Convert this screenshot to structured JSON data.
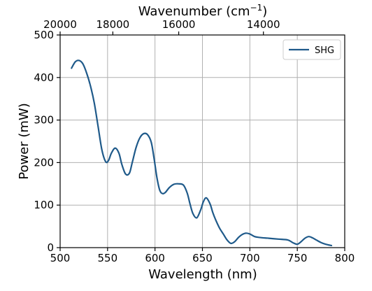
{
  "chart_data": {
    "type": "line",
    "xlabel": "Wavelength (nm)",
    "ylabel": "Power (mW)",
    "x2label": "Wavenumber (cm",
    "x2label_sup": "−1",
    "x2label_end": ")",
    "xlim": [
      500,
      800
    ],
    "ylim": [
      0,
      500
    ],
    "xticks": [
      500,
      550,
      600,
      650,
      700,
      750,
      800
    ],
    "yticks": [
      0,
      100,
      200,
      300,
      400,
      500
    ],
    "x2ticks": [
      20000,
      18000,
      16000,
      14000
    ],
    "grid": true,
    "legend_position": "top-right",
    "series": [
      {
        "name": "SHG",
        "color": "#1f5a8a",
        "x": [
          512,
          516,
          520,
          524,
          528,
          532,
          536,
          540,
          544,
          548,
          551,
          554,
          558,
          562,
          565,
          569,
          573,
          576,
          580,
          584,
          588,
          592,
          596,
          599,
          602,
          605,
          608,
          611,
          615,
          620,
          625,
          630,
          634,
          637,
          640,
          644,
          648,
          651,
          654,
          658,
          661,
          664,
          668,
          672,
          676,
          680,
          684,
          688,
          692,
          696,
          700,
          705,
          710,
          720,
          730,
          740,
          745,
          750,
          754,
          758,
          762,
          766,
          770,
          775,
          780,
          786
        ],
        "y": [
          422,
          437,
          440,
          432,
          410,
          380,
          340,
          285,
          230,
          202,
          205,
          222,
          234,
          222,
          196,
          173,
          175,
          200,
          235,
          258,
          268,
          266,
          248,
          210,
          165,
          135,
          127,
          130,
          141,
          149,
          150,
          147,
          128,
          102,
          80,
          70,
          88,
          108,
          117,
          103,
          82,
          65,
          46,
          32,
          18,
          10,
          14,
          24,
          31,
          34,
          32,
          26,
          24,
          22,
          20,
          18,
          12,
          8,
          14,
          22,
          26,
          23,
          18,
          12,
          8,
          5
        ]
      }
    ]
  }
}
